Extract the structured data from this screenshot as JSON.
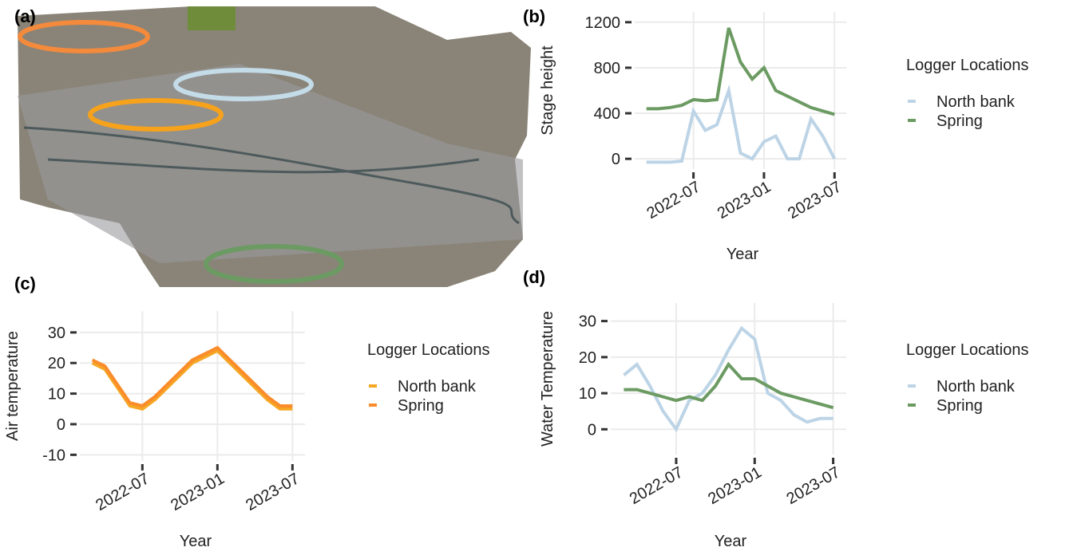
{
  "chart_data": [
    {
      "type": "image",
      "panel_label": "(a)"
    },
    {
      "type": "line",
      "panel_label": "(b)",
      "y_label": "Stage height",
      "x_label": "Year",
      "legend_title": "Logger Locations",
      "x": [
        "2022-03",
        "2022-04",
        "2022-05",
        "2022-06",
        "2022-07",
        "2022-08",
        "2022-09",
        "2022-10",
        "2022-11",
        "2022-12",
        "2023-01",
        "2023-02",
        "2023-03",
        "2023-04",
        "2023-05",
        "2023-06",
        "2023-07"
      ],
      "series": [
        {
          "name": "North bank",
          "color": "#bcd4e6",
          "values": [
            -30,
            -30,
            -30,
            -20,
            420,
            250,
            300,
            600,
            50,
            0,
            150,
            200,
            0,
            0,
            350,
            200,
            0
          ]
        },
        {
          "name": "Spring",
          "color": "#6b9b62",
          "values": [
            440,
            440,
            450,
            470,
            520,
            510,
            520,
            1150,
            850,
            700,
            800,
            600,
            550,
            500,
            450,
            420,
            390
          ]
        }
      ],
      "xlim": [
        "2022-02",
        "2023-08"
      ],
      "xticks": [
        "2022-07",
        "2023-01",
        "2023-07"
      ],
      "ylim": [
        -90,
        1290
      ],
      "yticks": [
        0,
        400,
        800,
        1200
      ],
      "grid": true
    },
    {
      "type": "line",
      "panel_label": "(c)",
      "y_label": "Air temperature",
      "x_label": "Year",
      "legend_title": "Logger Locations",
      "x": [
        "2022-03",
        "2022-04",
        "2022-05",
        "2022-06",
        "2022-07",
        "2022-08",
        "2022-09",
        "2022-10",
        "2022-11",
        "2022-12",
        "2023-01",
        "2023-02",
        "2023-03",
        "2023-04",
        "2023-05",
        "2023-06",
        "2023-07"
      ],
      "series": [
        {
          "name": "North bank",
          "color": "#f5a623",
          "values": [
            20,
            18,
            12,
            6,
            5,
            8,
            12,
            16,
            20,
            22,
            24,
            20,
            16,
            12,
            8,
            5,
            5
          ]
        },
        {
          "name": "Spring",
          "color": "#fb8c2b",
          "values": [
            21,
            19,
            13,
            7,
            6,
            9,
            13,
            17,
            21,
            23,
            25,
            21,
            17,
            13,
            9,
            6,
            6
          ]
        }
      ],
      "xlim": [
        "2022-02",
        "2023-08"
      ],
      "xticks": [
        "2022-07",
        "2023-01",
        "2023-07"
      ],
      "ylim": [
        -12,
        37
      ],
      "yticks": [
        -10,
        0,
        10,
        20,
        30
      ],
      "grid": true
    },
    {
      "type": "line",
      "panel_label": "(d)",
      "y_label": "Water Temperature",
      "x_label": "Year",
      "legend_title": "Logger Locations",
      "x": [
        "2022-03",
        "2022-04",
        "2022-05",
        "2022-06",
        "2022-07",
        "2022-08",
        "2022-09",
        "2022-10",
        "2022-11",
        "2022-12",
        "2023-01",
        "2023-02",
        "2023-03",
        "2023-04",
        "2023-05",
        "2023-06",
        "2023-07"
      ],
      "series": [
        {
          "name": "North bank",
          "color": "#bcd4e6",
          "values": [
            15,
            18,
            12,
            5,
            0,
            8,
            10,
            15,
            22,
            28,
            25,
            10,
            8,
            4,
            2,
            3,
            3
          ]
        },
        {
          "name": "Spring",
          "color": "#6b9b62",
          "values": [
            11,
            11,
            10,
            9,
            8,
            9,
            8,
            12,
            18,
            14,
            14,
            12,
            10,
            9,
            8,
            7,
            6
          ]
        }
      ],
      "xlim": [
        "2022-02",
        "2023-08"
      ],
      "xticks": [
        "2022-07",
        "2023-01",
        "2023-07"
      ],
      "ylim": [
        -7,
        35
      ],
      "yticks": [
        0,
        10,
        20,
        30
      ],
      "grid": true
    }
  ]
}
